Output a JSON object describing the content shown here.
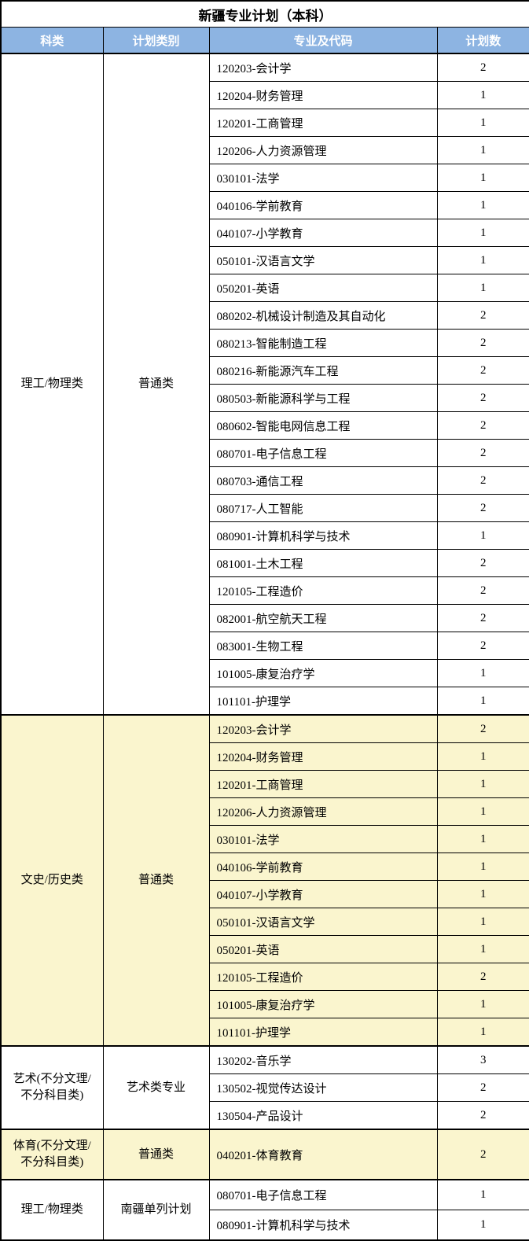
{
  "title": "新疆专业计划（本科）",
  "columns": [
    "科类",
    "计划类别",
    "专业及代码",
    "计划数"
  ],
  "colors": {
    "header_bg": "#8DB4E2",
    "header_text": "#FFFFFF",
    "highlight_bg": "#FAF5CE",
    "border": "#000000"
  },
  "sections": [
    {
      "category": "理工/物理类",
      "plan_type": "普通类",
      "highlight": false,
      "rows": [
        {
          "major": "120203-会计学",
          "count": 2
        },
        {
          "major": "120204-财务管理",
          "count": 1
        },
        {
          "major": "120201-工商管理",
          "count": 1
        },
        {
          "major": "120206-人力资源管理",
          "count": 1
        },
        {
          "major": "030101-法学",
          "count": 1
        },
        {
          "major": "040106-学前教育",
          "count": 1
        },
        {
          "major": "040107-小学教育",
          "count": 1
        },
        {
          "major": "050101-汉语言文学",
          "count": 1
        },
        {
          "major": "050201-英语",
          "count": 1
        },
        {
          "major": "080202-机械设计制造及其自动化",
          "count": 2
        },
        {
          "major": "080213-智能制造工程",
          "count": 2
        },
        {
          "major": "080216-新能源汽车工程",
          "count": 2
        },
        {
          "major": "080503-新能源科学与工程",
          "count": 2
        },
        {
          "major": "080602-智能电网信息工程",
          "count": 2
        },
        {
          "major": "080701-电子信息工程",
          "count": 2
        },
        {
          "major": "080703-通信工程",
          "count": 2
        },
        {
          "major": "080717-人工智能",
          "count": 2
        },
        {
          "major": "080901-计算机科学与技术",
          "count": 1
        },
        {
          "major": "081001-土木工程",
          "count": 2
        },
        {
          "major": "120105-工程造价",
          "count": 2
        },
        {
          "major": "082001-航空航天工程",
          "count": 2
        },
        {
          "major": "083001-生物工程",
          "count": 2
        },
        {
          "major": "101005-康复治疗学",
          "count": 1
        },
        {
          "major": "101101-护理学",
          "count": 1
        }
      ]
    },
    {
      "category": "文史/历史类",
      "plan_type": "普通类",
      "highlight": true,
      "rows": [
        {
          "major": "120203-会计学",
          "count": 2
        },
        {
          "major": "120204-财务管理",
          "count": 1
        },
        {
          "major": "120201-工商管理",
          "count": 1
        },
        {
          "major": "120206-人力资源管理",
          "count": 1
        },
        {
          "major": "030101-法学",
          "count": 1
        },
        {
          "major": "040106-学前教育",
          "count": 1
        },
        {
          "major": "040107-小学教育",
          "count": 1
        },
        {
          "major": "050101-汉语言文学",
          "count": 1
        },
        {
          "major": "050201-英语",
          "count": 1
        },
        {
          "major": "120105-工程造价",
          "count": 2
        },
        {
          "major": "101005-康复治疗学",
          "count": 1
        },
        {
          "major": "101101-护理学",
          "count": 1
        }
      ]
    },
    {
      "category": "艺术(不分文理/\n不分科目类)",
      "plan_type": "艺术类专业",
      "highlight": false,
      "rows": [
        {
          "major": "130202-音乐学",
          "count": 3
        },
        {
          "major": "130502-视觉传达设计",
          "count": 2
        },
        {
          "major": "130504-产品设计",
          "count": 2
        }
      ]
    },
    {
      "category": "体育(不分文理/\n不分科目类)",
      "plan_type": "普通类",
      "highlight": true,
      "rows": [
        {
          "major": "040201-体育教育",
          "count": 2
        }
      ]
    },
    {
      "category": "理工/物理类",
      "plan_type": "南疆单列计划",
      "highlight": false,
      "rows": [
        {
          "major": "080701-电子信息工程",
          "count": 1
        },
        {
          "major": "080901-计算机科学与技术",
          "count": 1
        }
      ]
    }
  ]
}
